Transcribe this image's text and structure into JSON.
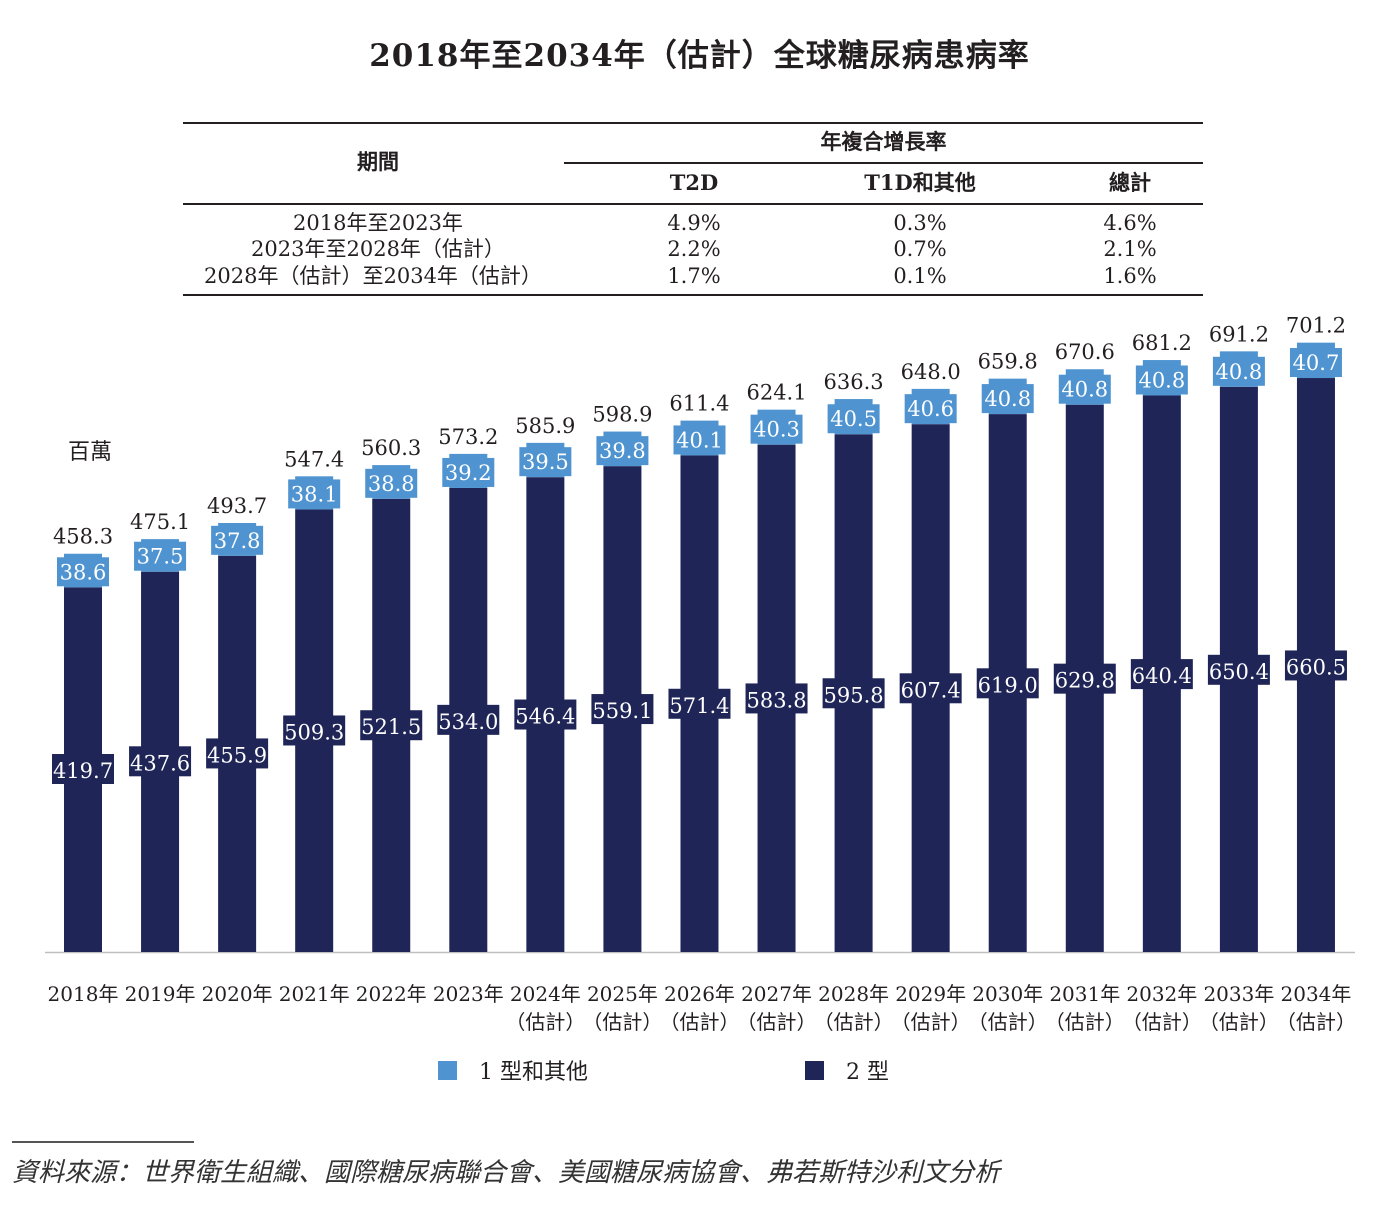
{
  "chart_data": {
    "type": "bar",
    "stacked": true,
    "title": "2018年至2034年（估計）全球糖尿病患病率",
    "ylabel": "百萬",
    "xlabel": "",
    "ylim": [
      0,
      701.2
    ],
    "grid": false,
    "legend_position": "bottom",
    "categories": [
      {
        "year": "2018年",
        "note": ""
      },
      {
        "year": "2019年",
        "note": ""
      },
      {
        "year": "2020年",
        "note": ""
      },
      {
        "year": "2021年",
        "note": ""
      },
      {
        "year": "2022年",
        "note": ""
      },
      {
        "year": "2023年",
        "note": ""
      },
      {
        "year": "2024年",
        "note": "（估計）"
      },
      {
        "year": "2025年",
        "note": "（估計）"
      },
      {
        "year": "2026年",
        "note": "（估計）"
      },
      {
        "year": "2027年",
        "note": "（估計）"
      },
      {
        "year": "2028年",
        "note": "（估計）"
      },
      {
        "year": "2029年",
        "note": "（估計）"
      },
      {
        "year": "2030年",
        "note": "（估計）"
      },
      {
        "year": "2031年",
        "note": "（估計）"
      },
      {
        "year": "2032年",
        "note": "（估計）"
      },
      {
        "year": "2033年",
        "note": "（估計）"
      },
      {
        "year": "2034年",
        "note": "（估計）"
      }
    ],
    "series": [
      {
        "name": "2 型",
        "color": "#1f2557",
        "values": [
          419.7,
          437.6,
          455.9,
          509.3,
          521.5,
          534.0,
          546.4,
          559.1,
          571.4,
          583.8,
          595.8,
          607.4,
          619.0,
          629.8,
          640.4,
          650.4,
          660.5
        ]
      },
      {
        "name": "1 型和其他",
        "color": "#4f94d0",
        "values": [
          38.6,
          37.5,
          37.8,
          38.1,
          38.8,
          39.2,
          39.5,
          39.8,
          40.1,
          40.3,
          40.5,
          40.6,
          40.8,
          40.8,
          40.8,
          40.8,
          40.7
        ]
      }
    ],
    "totals": [
      458.3,
      475.1,
      493.7,
      547.4,
      560.3,
      573.2,
      585.9,
      598.9,
      611.4,
      624.1,
      636.3,
      648.0,
      659.8,
      670.6,
      681.2,
      691.2,
      701.2
    ]
  },
  "cagr_table": {
    "header_group": "年複合增長率",
    "period_header": "期間",
    "columns": [
      "T2D",
      "T1D和其他",
      "總計"
    ],
    "rows": [
      {
        "period": "2018年至2023年",
        "values": [
          "4.9%",
          "0.3%",
          "4.6%"
        ]
      },
      {
        "period": "2023年至2028年（估計）",
        "values": [
          "2.2%",
          "0.7%",
          "2.1%"
        ]
      },
      {
        "period": "2028年（估計）至2034年（估計）",
        "values": [
          "1.7%",
          "0.1%",
          "1.6%"
        ]
      }
    ]
  },
  "legend": [
    {
      "label": "1 型和其他",
      "color": "#4f94d0"
    },
    {
      "label": "2 型",
      "color": "#1f2557"
    }
  ],
  "source": "資料來源：世界衛生組織、國際糖尿病聯合會、美國糖尿病協會、弗若斯特沙利文分析"
}
